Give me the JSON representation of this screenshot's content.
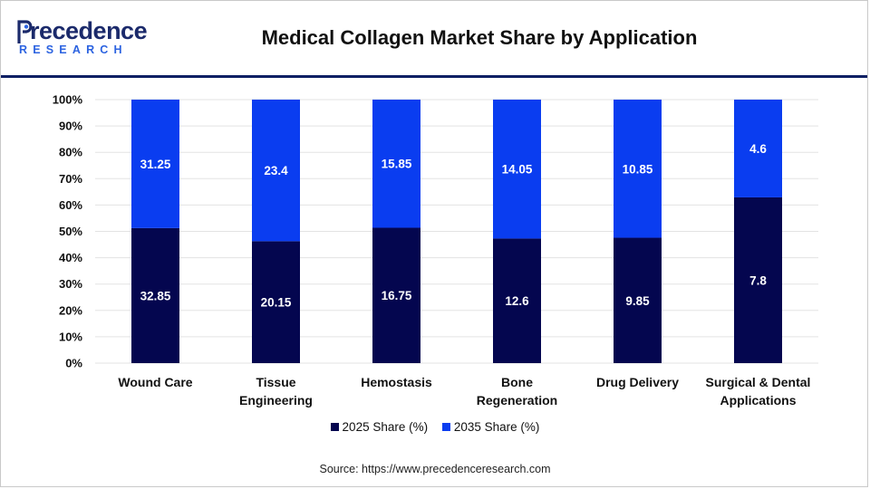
{
  "header": {
    "logo_word": "recedence",
    "logo_sub": "RESEARCH",
    "title": "Medical Collagen Market Share by Application"
  },
  "colors": {
    "series_2025": "#04064f",
    "series_2035": "#0a3df0",
    "header_rule": "#0c1f63",
    "grid": "#e3e3e3"
  },
  "chart_data": {
    "type": "bar",
    "stacked": true,
    "categories": [
      "Wound Care",
      "Tissue Engineering",
      "Hemostasis",
      "Bone Regeneration",
      "Drug Delivery",
      "Surgical & Dental Applications"
    ],
    "category_lines": [
      [
        "Wound Care"
      ],
      [
        "Tissue",
        "Engineering"
      ],
      [
        "Hemostasis"
      ],
      [
        "Bone",
        "Regeneration"
      ],
      [
        "Drug Delivery"
      ],
      [
        "Surgical & Dental",
        "Applications"
      ]
    ],
    "series": [
      {
        "name": "2025 Share (%)",
        "values": [
          32.85,
          20.15,
          16.75,
          12.6,
          9.85,
          7.8
        ],
        "labels": [
          "32.85",
          "20.15",
          "16.75",
          "12.6",
          "9.85",
          "7.8"
        ]
      },
      {
        "name": "2035 Share (%)",
        "values": [
          31.25,
          23.4,
          15.85,
          14.05,
          10.85,
          4.6
        ],
        "labels": [
          "31.25",
          "23.4",
          "15.85",
          "14.05",
          "10.85",
          "4.6"
        ]
      }
    ],
    "normalized_percent": true,
    "yticks": [
      "0%",
      "10%",
      "20%",
      "30%",
      "40%",
      "50%",
      "60%",
      "70%",
      "80%",
      "90%",
      "100%"
    ],
    "ylim": [
      0,
      100
    ],
    "grid": true,
    "legend_position": "bottom-center"
  },
  "source": "Source: https://www.precedenceresearch.com"
}
